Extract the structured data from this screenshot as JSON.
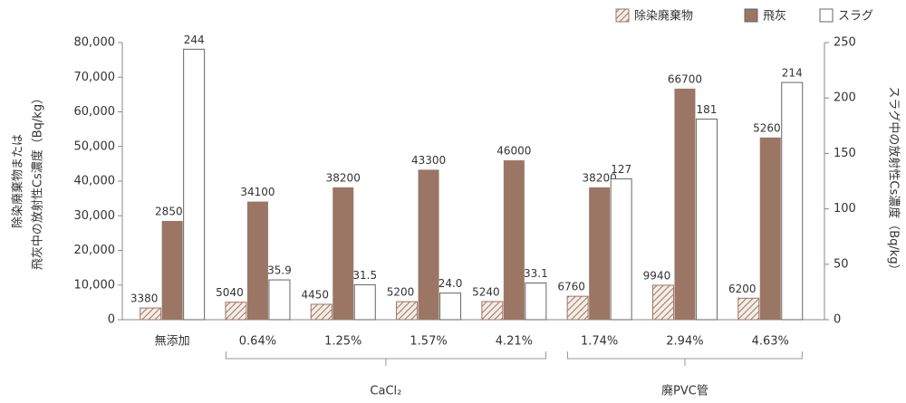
{
  "chart_data": {
    "type": "bar",
    "y_label": [
      "除染廃棄物または",
      "飛灰中の放射性Cs濃度（Bq/kg）"
    ],
    "y2_label": "スラグ中の放射性Cs濃度（Bq/kg）",
    "categories": [
      "無添加",
      "0.64%",
      "1.25%",
      "1.57%",
      "4.21%",
      "1.74%",
      "2.94%",
      "4.63%"
    ],
    "groups": [
      "CaCl₂",
      "廃PVC管"
    ],
    "series": [
      {
        "name": "除染廃棄物",
        "color": "#9b7665",
        "hatch": true,
        "values": [
          3380,
          5040,
          4450,
          5200,
          5240,
          6760,
          9940,
          6200
        ]
      },
      {
        "name": "飛灰",
        "color": "#9b7665",
        "values": [
          28500,
          34100,
          38200,
          43300,
          46000,
          38200,
          66700,
          52600
        ]
      },
      {
        "name": "スラグ",
        "color": "#ffffff",
        "axis": "y2",
        "values": [
          244,
          35.9,
          31.5,
          24.0,
          33.1,
          127,
          181,
          214
        ],
        "value_labels": [
          "244",
          "35.9",
          "31.5",
          "24.0",
          "33.1",
          "127",
          "181",
          "214"
        ]
      }
    ],
    "ylim": [
      0,
      80000
    ],
    "yticks": [
      0,
      {
        "value": 10000,
        "label": "10,000"
      },
      {
        "value": 20000,
        "label": "20,000"
      },
      {
        "value": 30000,
        "label": "30,000"
      },
      {
        "value": 40000,
        "label": "40,000"
      },
      {
        "value": 50000,
        "label": "50,000"
      },
      {
        "value": 60000,
        "label": "60,000"
      },
      {
        "value": 70000,
        "label": "70,000"
      },
      {
        "value": 80000,
        "label": "80,000"
      }
    ],
    "y2lim": [
      0,
      250
    ],
    "y2ticks": [
      0,
      50,
      100,
      150,
      200,
      250
    ],
    "legend": "top-right"
  }
}
